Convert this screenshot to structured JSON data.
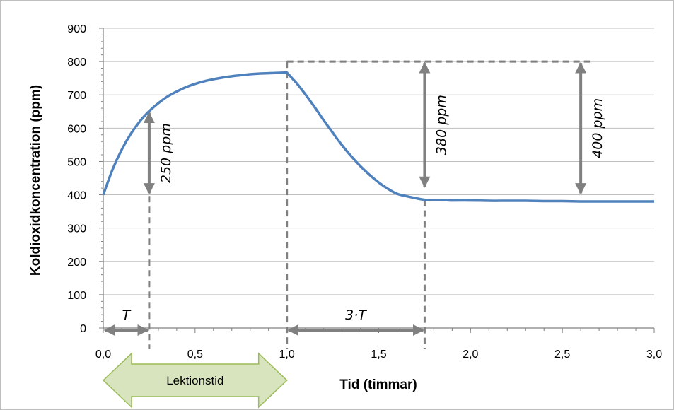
{
  "chart_data": {
    "type": "line",
    "title": "",
    "xlabel": "Tid (timmar)",
    "ylabel": "Koldioxidkoncentration (ppm)",
    "xlim": [
      0,
      3
    ],
    "ylim": [
      0,
      900
    ],
    "x_ticks": [
      "0,0",
      "0,5",
      "1,0",
      "1,5",
      "2,0",
      "2,5",
      "3,0"
    ],
    "y_ticks": [
      "0",
      "100",
      "200",
      "300",
      "400",
      "500",
      "600",
      "700",
      "800",
      "900"
    ],
    "grid": true,
    "series": [
      {
        "color": "#4f81bd",
        "x": [
          0,
          0.05,
          0.1,
          0.15,
          0.2,
          0.25,
          0.3,
          0.35,
          0.4,
          0.45,
          0.5,
          0.55,
          0.6,
          0.65,
          0.7,
          0.75,
          0.8,
          0.85,
          0.9,
          0.95,
          1.0,
          1.05,
          1.1,
          1.15,
          1.2,
          1.25,
          1.3,
          1.35,
          1.4,
          1.45,
          1.5,
          1.55,
          1.6,
          1.65,
          1.7,
          1.75,
          1.8,
          1.85,
          1.9,
          2.0,
          2.1,
          2.2,
          2.3,
          2.4,
          2.5,
          2.6,
          2.7,
          2.8,
          2.9,
          3.0
        ],
        "y": [
          400,
          475,
          535,
          583,
          621,
          651,
          675,
          695,
          710,
          723,
          733,
          741,
          747,
          752,
          756,
          759,
          762,
          764,
          765,
          766,
          767,
          737,
          702,
          664,
          624,
          586,
          549,
          516,
          486,
          460,
          437,
          418,
          403,
          396,
          390,
          385,
          384,
          384,
          383,
          383,
          382,
          382,
          382,
          381,
          381,
          380,
          380,
          380,
          380,
          380
        ]
      }
    ],
    "reference_lines": [
      {
        "type": "vertical-dashed",
        "x": 0.25
      },
      {
        "type": "vertical-dashed",
        "x": 1.0
      },
      {
        "type": "vertical-dashed",
        "x": 1.75
      },
      {
        "type": "horizontal-dashed",
        "y": 800,
        "x_range": [
          1.0,
          2.65
        ]
      }
    ],
    "annotations": [
      {
        "text": "250 ppm",
        "x": 0.25,
        "y_range": [
          400,
          650
        ]
      },
      {
        "text": "380 ppm",
        "x": 1.75,
        "y_range": [
          420,
          800
        ]
      },
      {
        "text": "400 ppm",
        "x": 2.6,
        "y_range": [
          400,
          800
        ]
      },
      {
        "text": "T",
        "x_range": [
          0,
          0.25
        ]
      },
      {
        "text": "3·T",
        "x_range": [
          1.0,
          1.75
        ]
      }
    ],
    "band_label": "Lektionstid",
    "band_x_range": [
      0,
      1.0
    ],
    "colors": {
      "line": "#4f81bd",
      "arrows": "#808080",
      "band_fill": "#d7e4bd",
      "band_border": "#9bbb59",
      "grid": "#bfbfbf"
    }
  }
}
